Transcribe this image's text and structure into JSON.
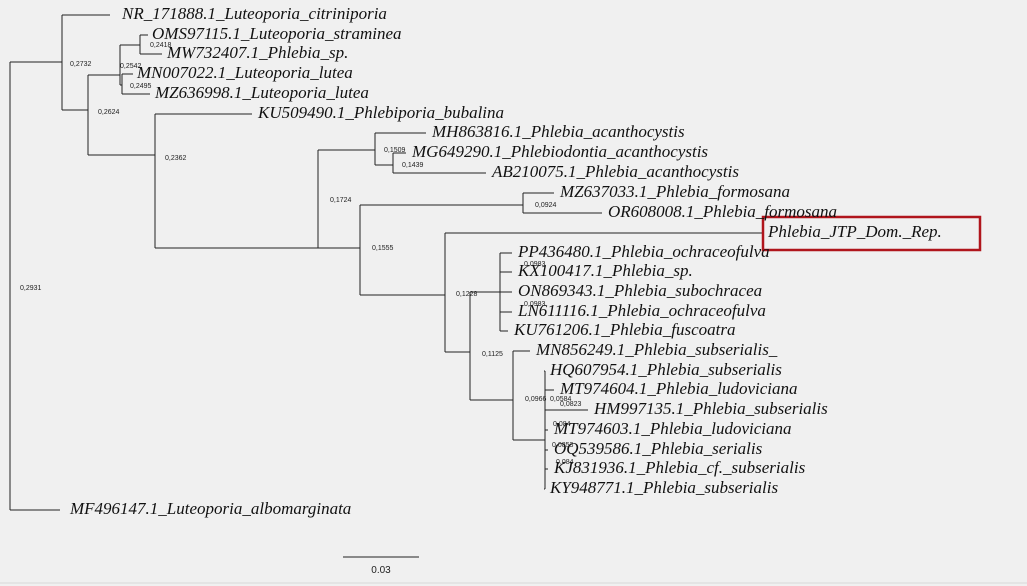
{
  "tree": {
    "leaves": [
      "NR_171888.1_Luteoporia_citriniporia",
      "OMS97115.1_Luteoporia_straminea",
      "MW732407.1_Phlebia_sp.",
      "MN007022.1_Luteoporia_lutea",
      "MZ636998.1_Luteoporia_lutea",
      "KU509490.1_Phlebiporia_bubalina",
      "MH863816.1_Phlebia_acanthocystis",
      "MG649290.1_Phlebiodontia_acanthocystis",
      "AB210075.1_Phlebia_acanthocystis",
      "MZ637033.1_Phlebia_formosana",
      "OR608008.1_Phlebia_formosana",
      "Phlebia_JTP_Dom._Rep.",
      "PP436480.1_Phlebia_ochraceofulva",
      "KX100417.1_Phlebia_sp.",
      "ON869343.1_Phlebia_subochracea",
      "LN611116.1_Phlebia_ochraceofulva",
      "KU761206.1_Phlebia_fuscoatra",
      "MN856249.1_Phlebia_subserialis_",
      "HQ607954.1_Phlebia_subserialis",
      "MT974604.1_Phlebia_ludoviciana",
      "HM997135.1_Phlebia_subserialis",
      "MT974603.1_Phlebia_ludoviciana",
      "OQ539586.1_Phlebia_serialis",
      "KJ831936.1_Phlebia_cf._subserialis",
      "KY948771.1_Phlebia_subserialis",
      "MF496147.1_Luteoporia_albomarginata"
    ],
    "node_labels": [
      "0,2931",
      "0,2732",
      "0,2418",
      "0,2542",
      "0,2495",
      "0,2624",
      "0,2362",
      "0,1509",
      "0,1439",
      "0,1724",
      "0,0924",
      "0,1555",
      "0,1228",
      "0,0983",
      "0,0983",
      "0,1125",
      "0,0966",
      "0,0584",
      "0,0823",
      "0,084",
      "0,0853",
      "0,084"
    ],
    "scale_label": "0.03"
  }
}
